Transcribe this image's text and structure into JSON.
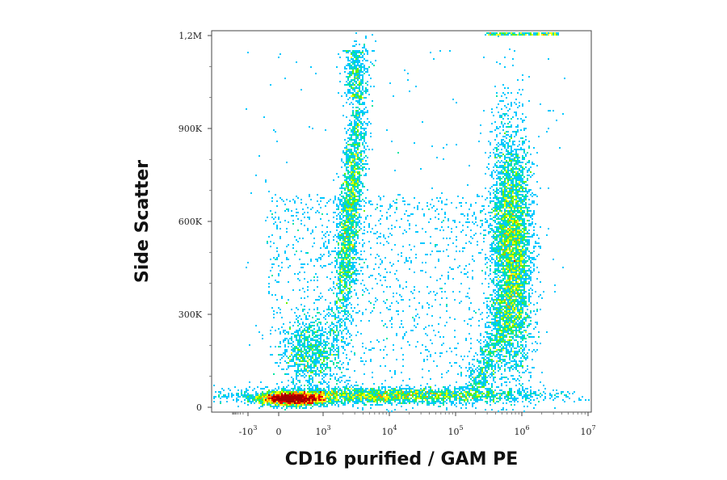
{
  "chart_data": {
    "type": "scatter",
    "subtype": "flow-cytometry-density-dot-plot",
    "title": "",
    "xlabel": "CD16 purified / GAM PE",
    "ylabel": "Side Scatter",
    "x_scale": "biexponential",
    "y_scale": "linear",
    "xlim": [
      -5000,
      10000000
    ],
    "ylim": [
      0,
      1200000
    ],
    "x_ticks": [
      {
        "value": -1000,
        "base": "-10",
        "exp": "3"
      },
      {
        "value": 0,
        "base": "0",
        "exp": ""
      },
      {
        "value": 1000,
        "base": "10",
        "exp": "3"
      },
      {
        "value": 10000,
        "base": "10",
        "exp": "4"
      },
      {
        "value": 100000,
        "base": "10",
        "exp": "5"
      },
      {
        "value": 1000000,
        "base": "10",
        "exp": "6"
      },
      {
        "value": 10000000,
        "base": "10",
        "exp": "7"
      }
    ],
    "y_ticks": [
      {
        "value": 0,
        "label": "0"
      },
      {
        "value": 300000,
        "label": "300K"
      },
      {
        "value": 600000,
        "label": "600K"
      },
      {
        "value": 900000,
        "label": "900K"
      },
      {
        "value": 1200000,
        "label": "1,2M"
      }
    ],
    "density_colormap": [
      "#0000c8",
      "#0050ff",
      "#00c8ff",
      "#00e6a0",
      "#64f000",
      "#ffff00",
      "#ff9600",
      "#e60000",
      "#a00000"
    ],
    "populations": [
      {
        "name": "CD16-negative low SSC",
        "x_center": 300,
        "y_center": 30000,
        "density": "high"
      },
      {
        "name": "CD16-negative low SSC spread",
        "x_center": 5000,
        "y_center": 40000,
        "density": "medium"
      },
      {
        "name": "CD16-negative low-intermediate SSC",
        "x_center": 700,
        "y_center": 180000,
        "density": "low"
      },
      {
        "name": "CD16-negative high SSC",
        "x_center": 2500,
        "y_center": 650000,
        "density": "medium"
      },
      {
        "name": "CD16-positive high SSC",
        "x_center": 700000,
        "y_center": 520000,
        "density": "high"
      }
    ]
  }
}
